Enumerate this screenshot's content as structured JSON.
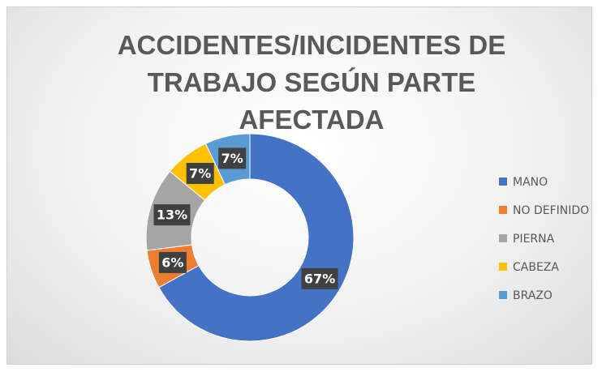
{
  "chart_data": {
    "type": "donut",
    "title": "ACCIDENTES/INCIDENTES DE TRABAJO SEGÚN PARTE AFECTADA",
    "categories": [
      "MANO",
      "NO DEFINIDO",
      "PIERNA",
      "CABEZA",
      "BRAZO"
    ],
    "values": [
      67,
      6,
      13,
      7,
      7
    ],
    "value_labels": [
      "67%",
      "6%",
      "13%",
      "7%",
      "7%"
    ],
    "colors": [
      "#4472c4",
      "#ed7d31",
      "#a5a5a5",
      "#ffc000",
      "#5b9bd5"
    ],
    "legend": "right"
  }
}
